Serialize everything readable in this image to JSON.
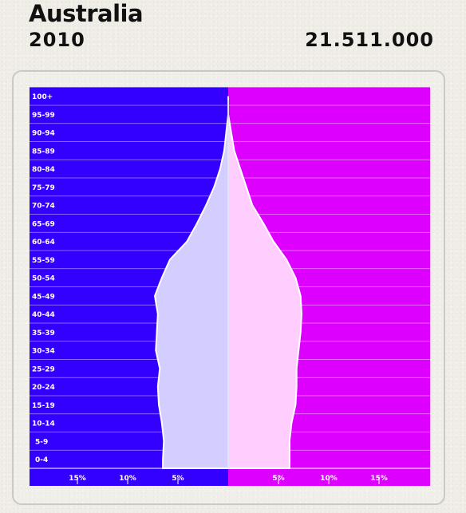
{
  "header": {
    "country": "Australia",
    "year": "2010",
    "population": "21.511.000"
  },
  "colors": {
    "male_bg": "#3300ff",
    "female_bg": "#dd00ff",
    "male_fill": "#d3ceff",
    "female_fill": "#ffceff",
    "outline": "#ffffff"
  },
  "chart_data": {
    "type": "bar",
    "title": "Australia",
    "subtitle": "2010",
    "categories": [
      "0-4",
      "5-9",
      "10-14",
      "15-19",
      "20-24",
      "25-29",
      "30-34",
      "35-39",
      "40-44",
      "45-49",
      "50-54",
      "55-59",
      "60-64",
      "65-69",
      "70-74",
      "75-79",
      "80-84",
      "85-89",
      "90-94",
      "95-99",
      "100+"
    ],
    "series": [
      {
        "side": "left",
        "values": [
          6.5,
          6.4,
          6.6,
          6.9,
          7.0,
          6.8,
          7.2,
          7.1,
          7.0,
          7.3,
          6.6,
          5.8,
          4.1,
          3.1,
          2.2,
          1.4,
          0.8,
          0.4,
          0.2,
          0.0,
          0.0
        ]
      },
      {
        "side": "right",
        "values": [
          6.1,
          6.1,
          6.3,
          6.7,
          6.8,
          6.8,
          7.0,
          7.2,
          7.3,
          7.2,
          6.7,
          5.8,
          4.5,
          3.5,
          2.4,
          1.8,
          1.2,
          0.6,
          0.3,
          0.0,
          0.0
        ]
      }
    ],
    "xaxis_left_ticks": [
      "15%",
      "10%",
      "5%"
    ],
    "xaxis_right_ticks": [
      "5%",
      "10%",
      "15%"
    ],
    "xlim": [
      0,
      20
    ],
    "grid": true
  }
}
